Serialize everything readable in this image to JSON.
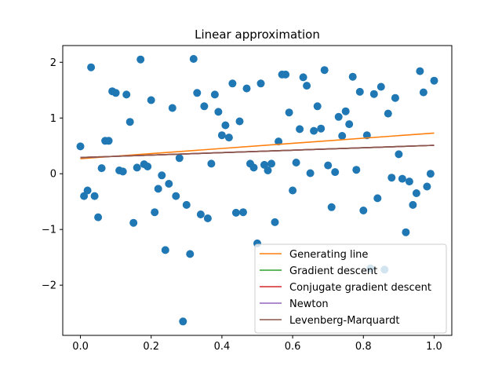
{
  "chart_data": {
    "type": "scatter",
    "title": "Linear approximation",
    "xlabel": "",
    "ylabel": "",
    "xlim": [
      -0.05,
      1.05
    ],
    "ylim": [
      -2.9,
      2.3
    ],
    "xticks": [
      0.0,
      0.2,
      0.4,
      0.6,
      0.8,
      1.0
    ],
    "xtick_labels": [
      "0.0",
      "0.2",
      "0.4",
      "0.6",
      "0.8",
      "1.0"
    ],
    "yticks": [
      -2,
      -1,
      0,
      1,
      2
    ],
    "ytick_labels": [
      "−2",
      "−1",
      "0",
      "1",
      "2"
    ],
    "grid": false,
    "legend_position": "lower-right",
    "points_color": "#1f77b4",
    "points": [
      [
        0.0,
        0.49
      ],
      [
        0.01,
        -0.4
      ],
      [
        0.02,
        -0.3
      ],
      [
        0.03,
        1.91
      ],
      [
        0.04,
        -0.4
      ],
      [
        0.05,
        -0.78
      ],
      [
        0.06,
        0.1
      ],
      [
        0.07,
        0.59
      ],
      [
        0.08,
        0.59
      ],
      [
        0.09,
        1.48
      ],
      [
        0.1,
        1.45
      ],
      [
        0.11,
        0.06
      ],
      [
        0.12,
        0.04
      ],
      [
        0.13,
        1.42
      ],
      [
        0.14,
        0.93
      ],
      [
        0.15,
        -0.88
      ],
      [
        0.16,
        0.11
      ],
      [
        0.17,
        2.05
      ],
      [
        0.18,
        0.17
      ],
      [
        0.19,
        0.13
      ],
      [
        0.2,
        1.32
      ],
      [
        0.21,
        -0.69
      ],
      [
        0.22,
        -0.27
      ],
      [
        0.23,
        -0.03
      ],
      [
        0.24,
        -1.37
      ],
      [
        0.25,
        -0.18
      ],
      [
        0.26,
        1.18
      ],
      [
        0.27,
        -0.4
      ],
      [
        0.28,
        0.28
      ],
      [
        0.29,
        -2.65
      ],
      [
        0.3,
        -0.56
      ],
      [
        0.31,
        -1.44
      ],
      [
        0.32,
        2.06
      ],
      [
        0.33,
        1.45
      ],
      [
        0.34,
        -0.73
      ],
      [
        0.35,
        1.21
      ],
      [
        0.36,
        -0.8
      ],
      [
        0.37,
        0.18
      ],
      [
        0.38,
        1.42
      ],
      [
        0.39,
        1.11
      ],
      [
        0.4,
        0.69
      ],
      [
        0.41,
        0.87
      ],
      [
        0.42,
        0.65
      ],
      [
        0.43,
        1.62
      ],
      [
        0.44,
        -0.7
      ],
      [
        0.45,
        0.94
      ],
      [
        0.46,
        -0.69
      ],
      [
        0.47,
        1.53
      ],
      [
        0.48,
        0.18
      ],
      [
        0.49,
        0.11
      ],
      [
        0.5,
        -1.25
      ],
      [
        0.51,
        1.62
      ],
      [
        0.52,
        0.16
      ],
      [
        0.53,
        0.06
      ],
      [
        0.54,
        0.18
      ],
      [
        0.55,
        -0.87
      ],
      [
        0.56,
        0.58
      ],
      [
        0.57,
        1.78
      ],
      [
        0.58,
        1.78
      ],
      [
        0.59,
        1.1
      ],
      [
        0.6,
        -0.3
      ],
      [
        0.61,
        0.2
      ],
      [
        0.62,
        0.8
      ],
      [
        0.63,
        1.73
      ],
      [
        0.64,
        1.58
      ],
      [
        0.65,
        0.01
      ],
      [
        0.66,
        0.77
      ],
      [
        0.67,
        1.21
      ],
      [
        0.68,
        0.81
      ],
      [
        0.69,
        1.86
      ],
      [
        0.7,
        0.15
      ],
      [
        0.71,
        -0.6
      ],
      [
        0.72,
        0.03
      ],
      [
        0.73,
        1.02
      ],
      [
        0.74,
        0.68
      ],
      [
        0.75,
        1.12
      ],
      [
        0.76,
        0.89
      ],
      [
        0.77,
        1.74
      ],
      [
        0.78,
        0.07
      ],
      [
        0.79,
        1.47
      ],
      [
        0.8,
        -0.66
      ],
      [
        0.81,
        0.69
      ],
      [
        0.82,
        -1.7
      ],
      [
        0.83,
        1.43
      ],
      [
        0.84,
        -0.44
      ],
      [
        0.85,
        1.56
      ],
      [
        0.86,
        -1.72
      ],
      [
        0.87,
        1.08
      ],
      [
        0.88,
        -0.07
      ],
      [
        0.89,
        1.36
      ],
      [
        0.9,
        0.35
      ],
      [
        0.91,
        -0.09
      ],
      [
        0.92,
        -1.05
      ],
      [
        0.93,
        -0.14
      ],
      [
        0.94,
        -0.56
      ],
      [
        0.95,
        -0.35
      ],
      [
        0.96,
        1.84
      ],
      [
        0.97,
        1.46
      ],
      [
        0.98,
        -0.23
      ],
      [
        0.99,
        0.0
      ],
      [
        1.0,
        1.67
      ]
    ],
    "series": [
      {
        "name": "Generating line",
        "color": "#ff7f0e",
        "x": [
          0,
          1
        ],
        "y": [
          0.27,
          0.73
        ]
      },
      {
        "name": "Gradient descent",
        "color": "#2ca02c",
        "x": [
          0,
          1
        ],
        "y": [
          0.29,
          0.51
        ]
      },
      {
        "name": "Conjugate gradient descent",
        "color": "#d62728",
        "x": [
          0,
          1
        ],
        "y": [
          0.29,
          0.51
        ]
      },
      {
        "name": "Newton",
        "color": "#9467bd",
        "x": [
          0,
          1
        ],
        "y": [
          0.29,
          0.51
        ]
      },
      {
        "name": "Levenberg-Marquardt",
        "color": "#8c564b",
        "x": [
          0,
          1
        ],
        "y": [
          0.29,
          0.51
        ]
      }
    ]
  }
}
